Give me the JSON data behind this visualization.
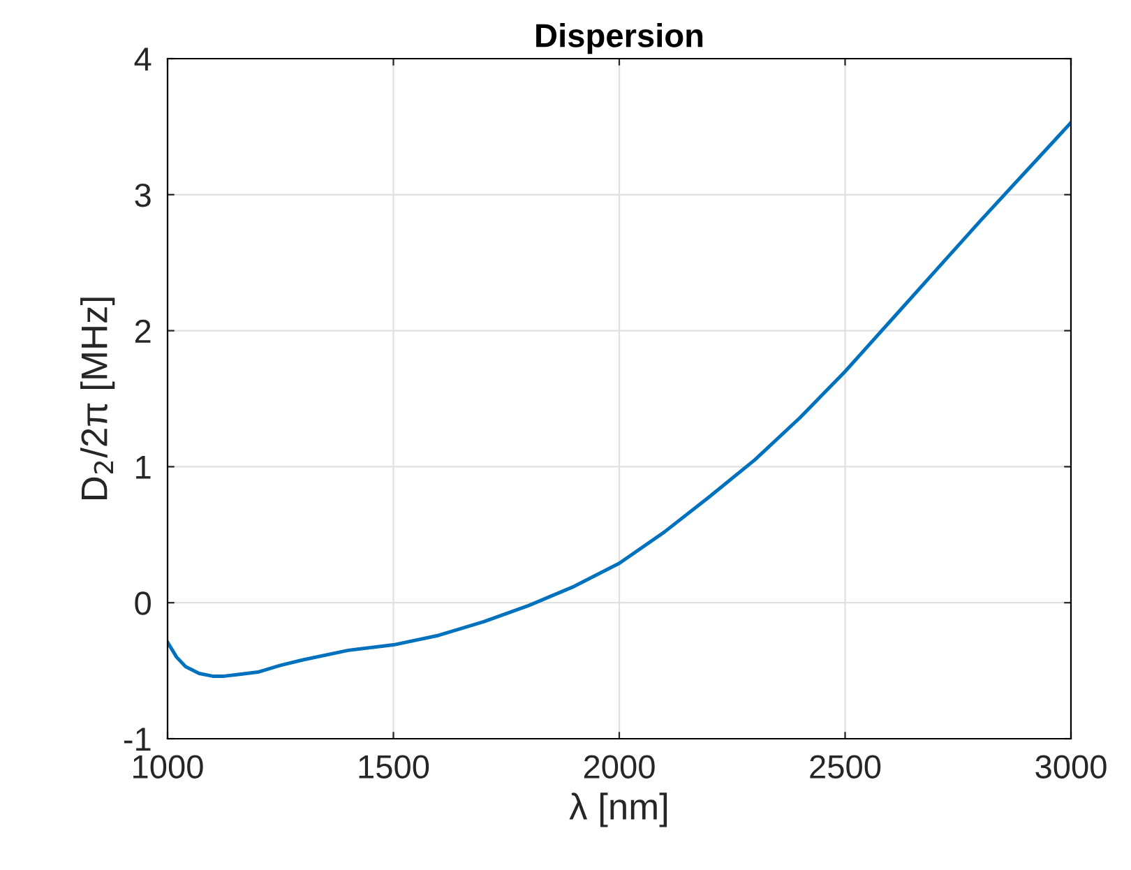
{
  "chart_data": {
    "type": "line",
    "title": "Dispersion",
    "xlabel": "λ [nm]",
    "ylabel": "D$_{2}$/2π [MHz]",
    "xlim": [
      1000,
      3000
    ],
    "ylim": [
      -1,
      4
    ],
    "xticks": [
      1000,
      1500,
      2000,
      2500,
      3000
    ],
    "yticks": [
      -1,
      0,
      1,
      2,
      3,
      4
    ],
    "grid": true,
    "series": [
      {
        "color": "#0072bd",
        "x": [
          1000,
          1020,
          1040,
          1070,
          1100,
          1125,
          1150,
          1200,
          1250,
          1300,
          1400,
          1500,
          1600,
          1700,
          1800,
          1900,
          2000,
          2100,
          2200,
          2300,
          2400,
          2500,
          2600,
          2700,
          2800,
          2900,
          3000
        ],
        "values": [
          -0.29,
          -0.4,
          -0.47,
          -0.52,
          -0.54,
          -0.54,
          -0.53,
          -0.51,
          -0.46,
          -0.42,
          -0.35,
          -0.31,
          -0.24,
          -0.14,
          -0.02,
          0.12,
          0.29,
          0.52,
          0.78,
          1.05,
          1.36,
          1.7,
          2.07,
          2.44,
          2.81,
          3.17,
          3.53
        ]
      }
    ]
  }
}
